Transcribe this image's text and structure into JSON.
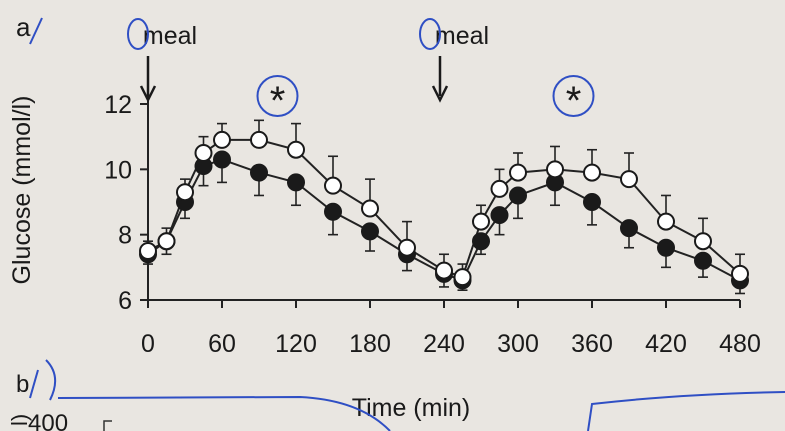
{
  "panel_labels": {
    "a": "a",
    "b": "b"
  },
  "annotations": {
    "meal_labels": [
      "meal",
      "meal"
    ],
    "meal_times": [
      0,
      240
    ],
    "significance": [
      "*",
      "*"
    ],
    "significance_times": [
      105,
      345
    ]
  },
  "chart_data": {
    "type": "line",
    "title": "",
    "xlabel": "Time (min)",
    "ylabel": "Glucose (mmol/l)",
    "xlim": [
      0,
      480
    ],
    "ylim": [
      6,
      12
    ],
    "xticks": [
      0,
      60,
      120,
      180,
      240,
      300,
      360,
      420,
      480
    ],
    "yticks": [
      6,
      8,
      10,
      12
    ],
    "x": [
      0,
      15,
      30,
      45,
      60,
      90,
      120,
      150,
      180,
      210,
      240,
      255,
      270,
      285,
      300,
      330,
      360,
      390,
      420,
      450,
      480
    ],
    "series": [
      {
        "marker": "open-circle",
        "color": "#ffffff",
        "values": [
          7.5,
          7.8,
          9.3,
          10.5,
          10.9,
          10.9,
          10.6,
          9.5,
          8.8,
          7.6,
          6.9,
          6.7,
          8.4,
          9.4,
          9.9,
          10.0,
          9.9,
          9.7,
          8.4,
          7.8,
          6.8
        ],
        "errors": [
          0.3,
          0.4,
          0.4,
          0.5,
          0.5,
          0.6,
          0.8,
          0.9,
          0.9,
          0.8,
          0.5,
          0.4,
          0.5,
          0.6,
          0.6,
          0.7,
          0.7,
          0.8,
          0.8,
          0.7,
          0.6
        ]
      },
      {
        "marker": "filled-circle",
        "color": "#1a1a1a",
        "values": [
          7.4,
          7.8,
          9.0,
          10.1,
          10.3,
          9.9,
          9.6,
          8.7,
          8.1,
          7.4,
          6.8,
          6.6,
          7.8,
          8.6,
          9.2,
          9.6,
          9.0,
          8.2,
          7.6,
          7.2,
          6.6
        ],
        "errors": [
          0.3,
          0.4,
          0.5,
          0.6,
          0.7,
          0.7,
          0.7,
          0.7,
          0.6,
          0.5,
          0.4,
          0.3,
          0.4,
          0.6,
          0.7,
          0.7,
          0.7,
          0.6,
          0.6,
          0.5,
          0.4
        ]
      }
    ]
  },
  "panel_b": {
    "ylabel_fragment": "l)",
    "visible_tick": "400"
  }
}
